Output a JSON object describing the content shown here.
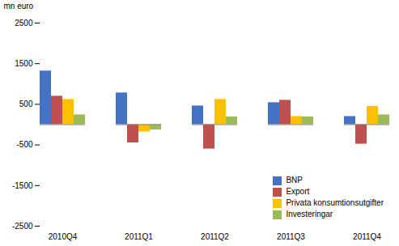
{
  "chart_data": {
    "type": "bar",
    "ylabel": "mn euro",
    "categories": [
      "2010Q4",
      "2011Q1",
      "2011Q2",
      "2011Q3",
      "2011Q4"
    ],
    "series": [
      {
        "name": "BNP",
        "color": "#4472C4",
        "values": [
          1320,
          780,
          460,
          540,
          200
        ]
      },
      {
        "name": "Export",
        "color": "#C0504D",
        "values": [
          700,
          -450,
          -600,
          600,
          -480
        ]
      },
      {
        "name": "Privata konsumtionsutgifter",
        "color": "#FFC000",
        "values": [
          620,
          -180,
          620,
          200,
          450
        ]
      },
      {
        "name": "Investeringar",
        "color": "#9BBB59",
        "values": [
          240,
          -130,
          190,
          190,
          240
        ]
      }
    ],
    "ylim": [
      -2500,
      2500
    ],
    "yticks": [
      -2500,
      -1500,
      -500,
      500,
      1500,
      2500
    ],
    "grid": false,
    "legend": "lower right"
  }
}
